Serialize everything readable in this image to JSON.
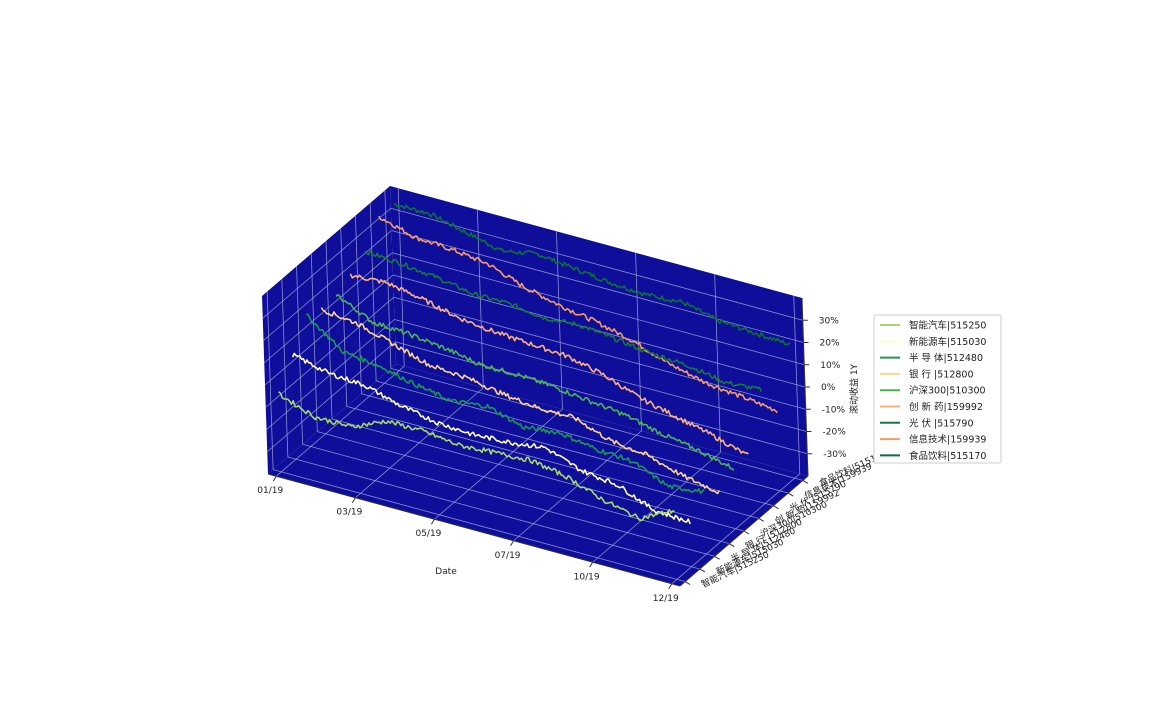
{
  "chart_data": {
    "type": "line3d",
    "title": "",
    "xlabel": "Date",
    "ylabel": "",
    "zlabel": "滚动收益 1Y",
    "x_ticks": [
      "01/19",
      "03/19",
      "05/19",
      "07/19",
      "10/19",
      "12/19"
    ],
    "z_ticks": [
      "-30%",
      "-20%",
      "-10%",
      "0%",
      "10%",
      "20%",
      "30%"
    ],
    "zlim": [
      -40,
      40
    ],
    "pane_color": "#0e0e9a",
    "grid": true,
    "legend_position": "right",
    "series": [
      {
        "name": "智能汽车|515250",
        "color": "#a6d96a",
        "values": [
          -5,
          -11,
          -11,
          -4,
          -4,
          -6,
          -5,
          -4,
          -7,
          -13,
          -17,
          -9
        ]
      },
      {
        "name": "新能源车|515030",
        "color": "#ffffcc",
        "values": [
          7,
          3,
          2,
          -3,
          -6,
          -7,
          -6,
          -4,
          -10,
          -12,
          -19,
          -20
        ]
      },
      {
        "name": "半 导 体|512480",
        "color": "#1a9850",
        "values": [
          19,
          7,
          5,
          1,
          -2,
          0,
          -5,
          -3,
          -6,
          -7,
          -14,
          -12
        ]
      },
      {
        "name": "银  行 |512800",
        "color": "#fdd58a",
        "values": [
          16,
          14,
          9,
          4,
          3,
          0,
          -2,
          -2,
          -8,
          -10,
          -15,
          -18
        ]
      },
      {
        "name": "沪深300|510300",
        "color": "#4db352",
        "values": [
          17,
          9,
          8,
          6,
          3,
          3,
          2,
          0,
          -2,
          -6,
          -9,
          -13
        ]
      },
      {
        "name": "创 新 药|159992",
        "color": "#fdb07a",
        "values": [
          20,
          21,
          18,
          14,
          12,
          11,
          10,
          6,
          0,
          -4,
          -8,
          -13
        ]
      },
      {
        "name": "光  伏 |515790",
        "color": "#16783e",
        "values": [
          25,
          24,
          22,
          19,
          19,
          17,
          18,
          16,
          14,
          13,
          10,
          11
        ]
      },
      {
        "name": "信息技术|159939",
        "color": "#f59b63",
        "values": [
          35,
          30,
          29,
          27,
          21,
          17,
          14,
          10,
          4,
          0,
          -2,
          -4
        ]
      },
      {
        "name": "食品饮料|515170",
        "color": "#0a7236",
        "values": [
          35,
          35,
          31,
          27,
          30,
          28,
          26,
          25,
          26,
          22,
          21,
          20
        ]
      }
    ]
  }
}
